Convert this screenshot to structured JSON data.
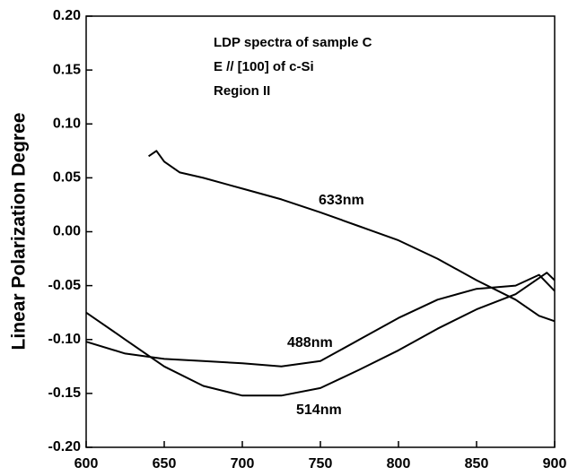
{
  "chart_data": {
    "type": "line",
    "ylabel": "Linear Polarization Degree",
    "annotations": [
      "LDP spectra of sample C",
      "E // [100] of c-Si",
      "Region II"
    ],
    "xlim": [
      600,
      900
    ],
    "xticks": [
      600,
      650,
      700,
      750,
      800,
      850,
      900
    ],
    "ylim": [
      -0.2,
      0.2
    ],
    "yticks": [
      {
        "value": -0.2,
        "label": "-0.20"
      },
      -0.15,
      {
        "value": -0.1,
        "label": "-0.10"
      },
      -0.05,
      {
        "value": 0,
        "label": "0.00"
      },
      0.05,
      {
        "value": 0.1,
        "label": "0.10"
      },
      0.15,
      {
        "value": 0.2,
        "label": "0.20"
      }
    ],
    "series": [
      {
        "name": "633nm",
        "color": "#000000",
        "x": [
          640,
          645,
          650,
          660,
          675,
          700,
          725,
          750,
          775,
          800,
          825,
          850,
          875,
          890,
          900
        ],
        "values": [
          0.07,
          0.075,
          0.065,
          0.055,
          0.05,
          0.04,
          0.03,
          0.018,
          0.005,
          -0.008,
          -0.025,
          -0.045,
          -0.063,
          -0.078,
          -0.083
        ]
      },
      {
        "name": "488nm",
        "color": "#000000",
        "x": [
          600,
          625,
          650,
          675,
          700,
          725,
          750,
          775,
          800,
          825,
          850,
          875,
          890,
          900
        ],
        "values": [
          -0.102,
          -0.113,
          -0.118,
          -0.12,
          -0.122,
          -0.125,
          -0.12,
          -0.1,
          -0.08,
          -0.063,
          -0.053,
          -0.05,
          -0.04,
          -0.055
        ]
      },
      {
        "name": "514nm",
        "color": "#000000",
        "x": [
          600,
          610,
          620,
          625,
          650,
          675,
          700,
          725,
          750,
          775,
          800,
          825,
          850,
          875,
          895,
          900
        ],
        "values": [
          -0.075,
          -0.085,
          -0.095,
          -0.1,
          -0.125,
          -0.143,
          -0.152,
          -0.152,
          -0.145,
          -0.128,
          -0.11,
          -0.09,
          -0.072,
          -0.058,
          -0.038,
          -0.045
        ]
      }
    ]
  }
}
